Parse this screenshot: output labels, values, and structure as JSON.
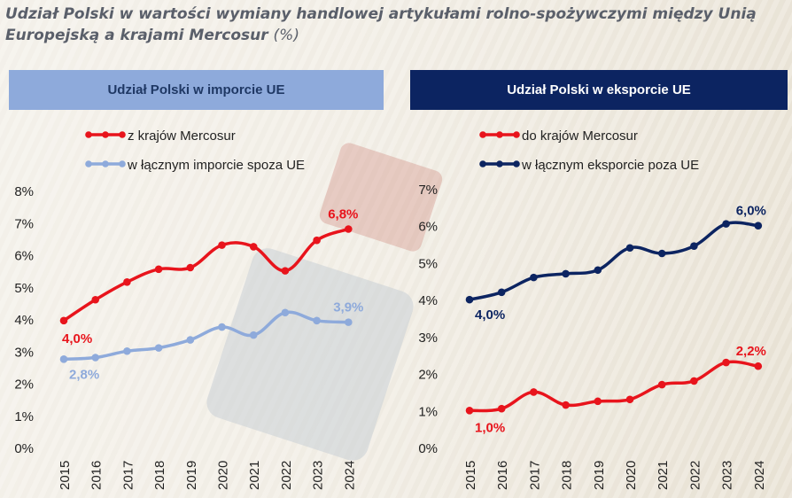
{
  "title": {
    "main": "Udział Polski w wartości wymiany handlowej artykułami rolno-spożywczymi między Unią Europejską a krajami Mercosur",
    "unit": "(%)"
  },
  "panels": {
    "left_title": "Udział Polski w imporcie UE",
    "right_title": "Udział Polski w eksporcie UE"
  },
  "colors": {
    "red": "#e8141c",
    "light_blue": "#8eaadb",
    "navy": "#0c2461"
  },
  "chart_data": [
    {
      "type": "line",
      "title": "Udział Polski w imporcie UE",
      "x": [
        "2015",
        "2016",
        "2017",
        "2018",
        "2019",
        "2020",
        "2021",
        "2022",
        "2023",
        "2024"
      ],
      "y_ticks": [
        "0%",
        "1%",
        "2%",
        "3%",
        "4%",
        "5%",
        "6%",
        "7%",
        "8%"
      ],
      "ylim": [
        0,
        8
      ],
      "legend_position": "top-left",
      "series": [
        {
          "name": "z krajów Mercosur",
          "color": "#e8141c",
          "values": [
            3.95,
            4.6,
            5.15,
            5.55,
            5.6,
            6.3,
            6.25,
            5.5,
            6.45,
            6.8
          ],
          "labels": [
            {
              "index": 0,
              "text": "4,0%"
            },
            {
              "index": 9,
              "text": "6,8%"
            }
          ]
        },
        {
          "name": "w łącznym imporcie spoza UE",
          "color": "#8eaadb",
          "values": [
            2.75,
            2.8,
            3.0,
            3.1,
            3.35,
            3.75,
            3.5,
            4.2,
            3.95,
            3.9
          ],
          "labels": [
            {
              "index": 0,
              "text": "2,8%"
            },
            {
              "index": 9,
              "text": "3,9%"
            }
          ]
        }
      ]
    },
    {
      "type": "line",
      "title": "Udział Polski w eksporcie UE",
      "x": [
        "2015",
        "2016",
        "2017",
        "2018",
        "2019",
        "2020",
        "2021",
        "2022",
        "2023",
        "2024"
      ],
      "y_ticks": [
        "0%",
        "1%",
        "2%",
        "3%",
        "4%",
        "5%",
        "6%",
        "7%"
      ],
      "ylim": [
        0,
        7
      ],
      "legend_position": "top-left",
      "series": [
        {
          "name": "do krajów Mercosur",
          "color": "#e8141c",
          "values": [
            1.0,
            1.05,
            1.5,
            1.15,
            1.25,
            1.3,
            1.7,
            1.8,
            2.3,
            2.2
          ],
          "labels": [
            {
              "index": 0,
              "text": "1,0%"
            },
            {
              "index": 9,
              "text": "2,2%"
            }
          ]
        },
        {
          "name": "w łącznym eksporcie poza UE",
          "color": "#0c2461",
          "values": [
            4.0,
            4.2,
            4.6,
            4.7,
            4.8,
            5.4,
            5.25,
            5.45,
            6.05,
            6.0
          ],
          "labels": [
            {
              "index": 0,
              "text": "4,0%"
            },
            {
              "index": 9,
              "text": "6,0%"
            }
          ]
        }
      ]
    }
  ]
}
